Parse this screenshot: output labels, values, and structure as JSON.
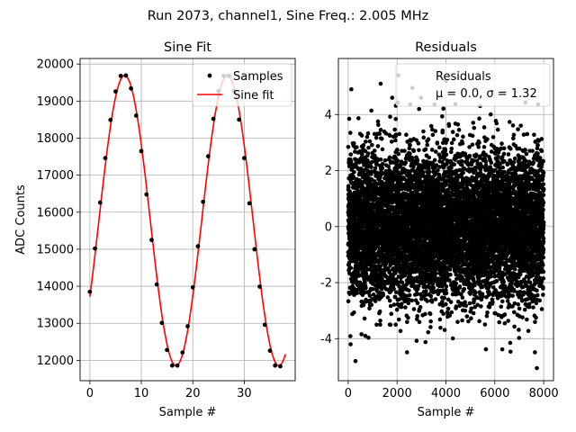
{
  "figure": {
    "suptitle": "Run 2073, channel1, Sine Freq.: 2.005 MHz"
  },
  "chart_data": [
    {
      "type": "line",
      "title": "Sine Fit",
      "xlabel": "Sample #",
      "ylabel": "ADC Counts",
      "xlim": [
        -1.9,
        39.9
      ],
      "ylim": [
        11450,
        20150
      ],
      "xticks": [
        0,
        10,
        20,
        30
      ],
      "yticks": [
        12000,
        13000,
        14000,
        15000,
        16000,
        17000,
        18000,
        19000,
        20000
      ],
      "grid": true,
      "legend": {
        "placement": "top-right",
        "entries": [
          "Samples",
          "Sine fit"
        ]
      },
      "series": [
        {
          "name": "Samples",
          "kind": "scatter",
          "color": "#000000",
          "x": [
            0,
            1,
            2,
            3,
            4,
            5,
            6,
            7,
            8,
            9,
            10,
            11,
            12,
            13,
            14,
            15,
            16,
            17,
            18,
            19,
            20,
            21,
            22,
            23,
            24,
            25,
            26,
            27,
            28,
            29,
            30,
            31,
            32,
            33,
            34,
            35,
            36,
            37
          ],
          "y": [
            13850,
            15020,
            16260,
            17460,
            18490,
            19260,
            19680,
            19690,
            19340,
            18610,
            17650,
            16480,
            15250,
            14050,
            13010,
            12280,
            11860,
            11860,
            12210,
            12920,
            13970,
            15080,
            16280,
            17510,
            18520,
            19270,
            19680,
            19680,
            19270,
            18500,
            17460,
            16240,
            15000,
            13990,
            12960,
            12260,
            11860,
            11840
          ]
        },
        {
          "name": "Sine fit",
          "kind": "line",
          "color": "#ff0000",
          "model": {
            "mean": 15775,
            "amplitude": 3920,
            "period": 19.98,
            "peak_x": 6.75,
            "x_range": [
              0,
              38
            ]
          }
        }
      ]
    },
    {
      "type": "scatter",
      "title": "Residuals",
      "xlabel": "Sample #",
      "ylabel": "",
      "xlim": [
        -400,
        8400
      ],
      "ylim": [
        -5.5,
        6.0
      ],
      "xticks": [
        0,
        2000,
        4000,
        6000,
        8000
      ],
      "yticks": [
        -4,
        -2,
        0,
        2,
        4
      ],
      "grid": true,
      "legend": {
        "placement": "top-right",
        "entries": [
          "Residuals",
          "μ = 0.0, σ = 1.32"
        ]
      },
      "series": [
        {
          "name": "Residuals",
          "color": "#000000",
          "stats": {
            "mu": 0.0,
            "sigma": 1.32,
            "n": 8000
          },
          "outliers": [
            [
              130,
              4.9
            ],
            [
              1330,
              5.1
            ],
            [
              2630,
              4.95
            ],
            [
              7720,
              -5.05
            ],
            [
              4000,
              5.2
            ],
            [
              700,
              -3.9
            ],
            [
              6630,
              -4.15
            ],
            [
              300,
              -4.8
            ],
            [
              2050,
              5.4
            ],
            [
              100,
              -4.2
            ],
            [
              1800,
              4.6
            ],
            [
              5400,
              4.3
            ]
          ]
        }
      ]
    }
  ]
}
